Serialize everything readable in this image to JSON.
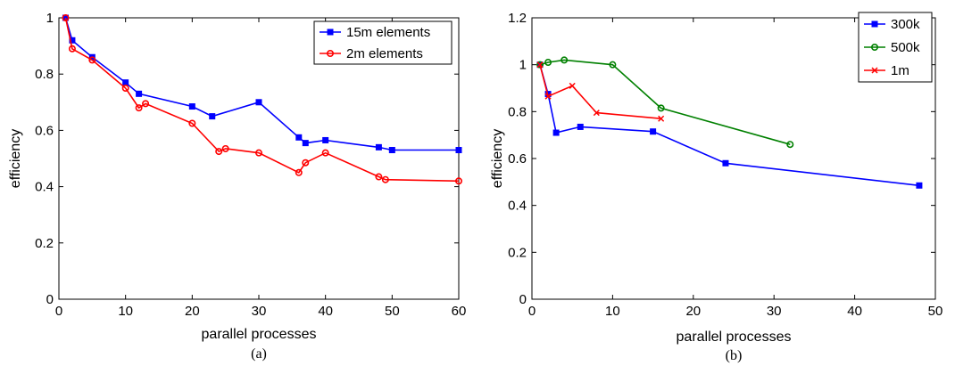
{
  "chart_data": [
    {
      "type": "line",
      "caption": "(a)",
      "xlabel": "parallel processes",
      "ylabel": "efficiency",
      "xlim": [
        0,
        60
      ],
      "ylim": [
        0,
        1
      ],
      "xticks": [
        0,
        10,
        20,
        30,
        40,
        50,
        60
      ],
      "xtick_labels": [
        "0",
        "10",
        "20",
        "30",
        "40",
        "50",
        "60"
      ],
      "yticks": [
        0,
        0.2,
        0.4,
        0.6,
        0.8,
        1
      ],
      "ytick_labels": [
        "0",
        "0.2",
        "0.4",
        "0.6",
        "0.8",
        "1"
      ],
      "grid": false,
      "legend_position": "top-right",
      "series": [
        {
          "name": "15m elements",
          "color": "#0000ff",
          "marker": "square",
          "x": [
            1,
            2,
            5,
            10,
            12,
            20,
            23,
            30,
            36,
            37,
            40,
            48,
            50,
            60
          ],
          "y": [
            1.0,
            0.92,
            0.86,
            0.77,
            0.73,
            0.685,
            0.65,
            0.7,
            0.575,
            0.555,
            0.565,
            0.54,
            0.53,
            0.53
          ]
        },
        {
          "name": "2m elements",
          "color": "#ff0000",
          "marker": "circle",
          "x": [
            1,
            2,
            5,
            10,
            12,
            13,
            20,
            24,
            25,
            30,
            36,
            37,
            40,
            48,
            49,
            60
          ],
          "y": [
            1.0,
            0.89,
            0.85,
            0.75,
            0.68,
            0.695,
            0.625,
            0.525,
            0.535,
            0.52,
            0.45,
            0.485,
            0.52,
            0.435,
            0.425,
            0.42
          ]
        }
      ]
    },
    {
      "type": "line",
      "caption": "(b)",
      "xlabel": "parallel processes",
      "ylabel": "efficiency",
      "xlim": [
        0,
        50
      ],
      "ylim": [
        0,
        1.2
      ],
      "xticks": [
        0,
        10,
        20,
        30,
        40,
        50
      ],
      "xtick_labels": [
        "0",
        "10",
        "20",
        "30",
        "40",
        "50"
      ],
      "yticks": [
        0,
        0.2,
        0.4,
        0.6,
        0.8,
        1,
        1.2
      ],
      "ytick_labels": [
        "0",
        "0.2",
        "0.4",
        "0.6",
        "0.8",
        "1",
        "1.2"
      ],
      "grid": false,
      "legend_position": "top-right",
      "series": [
        {
          "name": "300k",
          "color": "#0000ff",
          "marker": "square",
          "x": [
            1,
            2,
            3,
            6,
            15,
            24,
            48
          ],
          "y": [
            1.0,
            0.875,
            0.71,
            0.735,
            0.715,
            0.58,
            0.485
          ]
        },
        {
          "name": "500k",
          "color": "#008000",
          "marker": "circle",
          "x": [
            1,
            2,
            4,
            10,
            16,
            32
          ],
          "y": [
            1.0,
            1.01,
            1.02,
            1.0,
            0.815,
            0.66
          ]
        },
        {
          "name": "1m",
          "color": "#ff0000",
          "marker": "x",
          "x": [
            1,
            2,
            5,
            8,
            16
          ],
          "y": [
            1.0,
            0.865,
            0.91,
            0.795,
            0.77
          ]
        }
      ]
    }
  ]
}
